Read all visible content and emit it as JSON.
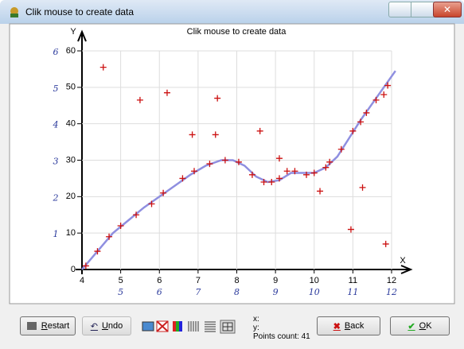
{
  "window": {
    "title": "Clik mouse to create data"
  },
  "chart_data": {
    "type": "scatter",
    "title": "Clik mouse to create data",
    "xlabel": "X",
    "ylabel": "Y",
    "xlim": [
      4,
      12
    ],
    "ylim": [
      0,
      60
    ],
    "xticks": [
      4,
      5,
      6,
      7,
      8,
      9,
      10,
      11,
      12
    ],
    "yticks": [
      0,
      10,
      20,
      30,
      40,
      50,
      60
    ],
    "grid": true,
    "series": [
      {
        "type": "line",
        "color": "#8f8fe0",
        "x": [
          4,
          4.4,
          4.8,
          5.2,
          5.6,
          6,
          6.4,
          6.8,
          7.2,
          7.6,
          7.9,
          8.2,
          8.5,
          8.8,
          9.1,
          9.4,
          9.7,
          10,
          10.3,
          10.6,
          10.9,
          11.2,
          11.5,
          11.8,
          12.1
        ],
        "y": [
          0,
          5,
          10,
          13.5,
          17,
          20,
          23,
          26,
          28.5,
          30,
          30,
          28.5,
          25.5,
          24,
          24.5,
          26.5,
          26.5,
          26.5,
          28,
          31,
          36,
          41,
          45.5,
          50,
          54.5
        ]
      },
      {
        "type": "marker",
        "color": "#cc1111",
        "x": [
          4.1,
          4.4,
          4.7,
          5.0,
          5.4,
          5.8,
          6.1,
          6.6,
          6.9,
          7.3,
          7.7,
          8.05,
          8.4,
          8.7,
          8.9,
          9.1,
          9.3,
          9.5,
          9.8,
          10.0,
          10.3,
          10.4,
          10.7,
          11.0,
          11.2,
          11.35,
          11.6,
          11.8,
          11.9,
          4.55,
          5.5,
          6.2,
          7.5,
          6.85,
          7.45,
          8.6,
          9.1,
          10.15,
          11.25,
          10.95,
          11.85
        ],
        "y": [
          1,
          5,
          9,
          12,
          15,
          18,
          21,
          25,
          27,
          29,
          30,
          29.5,
          26,
          24,
          24,
          25,
          27,
          27,
          26,
          26.5,
          28,
          29.5,
          33,
          38,
          40.5,
          43,
          46.5,
          48,
          50.5,
          55.5,
          46.5,
          48.5,
          47,
          37,
          37,
          38,
          30.5,
          21.5,
          22.5,
          11,
          7
        ]
      }
    ],
    "handwritten_y_labels": [
      "1",
      "2",
      "3",
      "4",
      "5",
      "6"
    ],
    "handwritten_x_labels": [
      "5",
      "6",
      "7",
      "8",
      "9",
      "10",
      "11",
      "12"
    ]
  },
  "status": {
    "x_label": "x:",
    "y_label": "y:",
    "points_count_label": "Points count:",
    "points_count": 41
  },
  "buttons": {
    "restart": "Restart",
    "undo": "Undo",
    "back": "Back",
    "ok": "OK"
  }
}
